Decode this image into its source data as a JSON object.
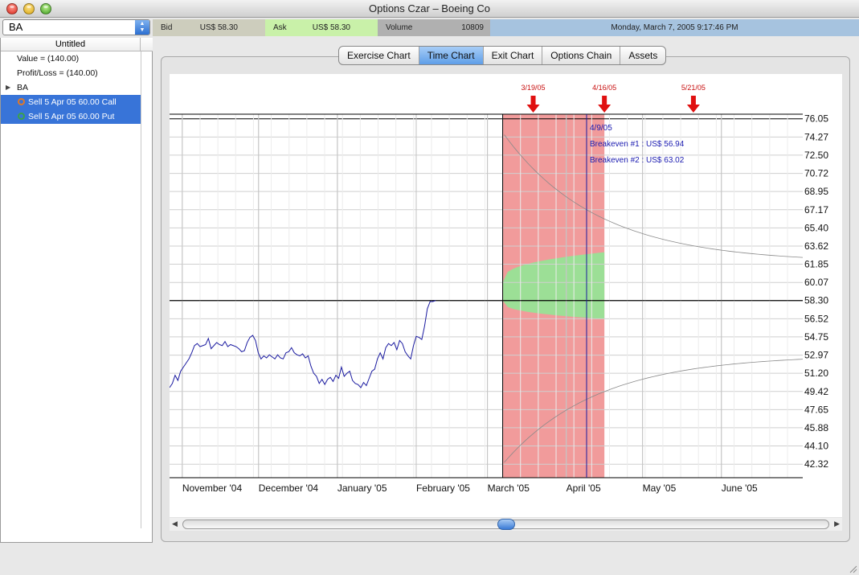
{
  "window": {
    "title": "Options Czar –  Boeing Co"
  },
  "symbol": {
    "value": "BA"
  },
  "quote": {
    "bid_label": "Bid",
    "bid_value": "US$ 58.30",
    "ask_label": "Ask",
    "ask_value": "US$ 58.30",
    "volume_label": "Volume",
    "volume_value": "10809",
    "datetime": "Monday, March 7, 2005 9:17:46 PM"
  },
  "tree": {
    "header": "Untitled",
    "value": "Value = (140.00)",
    "profit_loss": "Profit/Loss = (140.00)",
    "group": "BA",
    "positions": [
      {
        "label": "Sell 5 Apr 05 60.00 Call",
        "marker_color": "#e0782a"
      },
      {
        "label": "Sell 5 Apr 05 60.00 Put",
        "marker_color": "#3aa24a"
      }
    ]
  },
  "tabs": [
    {
      "label": "Exercise Chart",
      "active": false
    },
    {
      "label": "Time Chart",
      "active": true
    },
    {
      "label": "Exit Chart",
      "active": false
    },
    {
      "label": "Options Chain",
      "active": false
    },
    {
      "label": "Assets",
      "active": false
    }
  ],
  "chart_data": {
    "type": "line",
    "title": "",
    "xlabel": "",
    "ylabel": "",
    "x_range": [
      "2004-10-27",
      "2005-07-03"
    ],
    "y_range": [
      41.0,
      76.5
    ],
    "x_tick_labels": [
      "November '04",
      "December '04",
      "January '05",
      "February '05",
      "March '05",
      "April '05",
      "May '05",
      "June '05"
    ],
    "y_tick_labels": [
      "76.05",
      "74.27",
      "72.50",
      "70.72",
      "68.95",
      "67.17",
      "65.40",
      "63.62",
      "61.85",
      "60.07",
      "58.30",
      "56.52",
      "54.75",
      "52.97",
      "51.20",
      "49.42",
      "47.65",
      "45.88",
      "44.10",
      "42.32"
    ],
    "current_price": 58.3,
    "event_markers": [
      "3/19/05",
      "4/16/05",
      "5/21/05"
    ],
    "selected_date": "4/9/05",
    "annotations": [
      "4/9/05",
      "Breakeven #1 : US$ 56.94",
      "Breakeven #2 : US$ 63.02"
    ],
    "loss_region": {
      "from": "2005-03-07",
      "to": "2005-04-16"
    },
    "profit_band": {
      "upper_start": 60.07,
      "upper_end": 63.02,
      "lower_start": 58.3,
      "lower_end": 56.5
    },
    "series": [
      {
        "color": "#1a1aa0",
        "x_start": "2004-10-27",
        "x_step_days": 1.09,
        "values": [
          49.8,
          50.2,
          51.0,
          50.5,
          51.4,
          51.8,
          52.2,
          52.6,
          53.2,
          53.9,
          54.1,
          53.8,
          53.9,
          54.0,
          54.6,
          53.6,
          53.9,
          54.2,
          54.0,
          53.9,
          54.3,
          53.8,
          54.0,
          53.9,
          53.8,
          53.6,
          53.3,
          53.4,
          54.2,
          54.7,
          54.9,
          54.4,
          53.2,
          52.6,
          52.9,
          52.7,
          53.0,
          52.8,
          52.6,
          53.0,
          52.7,
          52.6,
          53.2,
          53.3,
          53.7,
          53.2,
          53.0,
          52.9,
          53.1,
          52.7,
          52.9,
          51.9,
          51.2,
          50.9,
          50.2,
          50.6,
          50.1,
          50.6,
          50.8,
          50.4,
          51.0,
          50.7,
          51.8,
          50.9,
          51.2,
          51.4,
          50.5,
          50.2,
          50.1,
          49.8,
          50.3,
          50.0,
          50.7,
          51.4,
          51.6,
          52.6,
          53.2,
          52.6,
          53.7,
          54.1,
          53.9,
          54.2,
          53.5,
          54.4,
          54.1,
          53.3,
          52.9,
          52.6,
          53.9,
          54.8,
          54.7,
          54.5,
          55.8,
          57.5,
          58.2,
          58.2,
          58.3
        ]
      }
    ],
    "grid": true
  }
}
